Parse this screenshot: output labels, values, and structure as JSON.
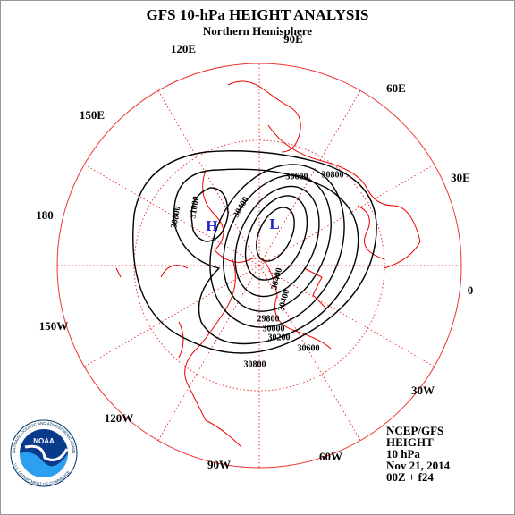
{
  "header": {
    "title": "GFS 10-hPa HEIGHT ANALYSIS",
    "subtitle": "Northern Hemisphere"
  },
  "longitude_labels": [
    "90E",
    "120E",
    "60E",
    "150E",
    "30E",
    "180",
    "0",
    "150W",
    "30W",
    "120W",
    "60W",
    "90W"
  ],
  "contour_labels": [
    "30800",
    "30600",
    "31000",
    "30800",
    "30400",
    "30400",
    "29800",
    "30000",
    "30200",
    "30400",
    "30600",
    "30800"
  ],
  "centers": [
    "H",
    "L"
  ],
  "info": [
    "NCEP/GFS",
    "HEIGHT",
    "10 hPa",
    "Nov 21, 2014",
    "00Z + f24"
  ],
  "logo": {
    "name": "NOAA",
    "top": "NATIONAL OCEANIC AND ATMOSPHERIC ADMINISTRATION",
    "bottom": "U.S. DEPARTMENT OF COMMERCE"
  }
}
